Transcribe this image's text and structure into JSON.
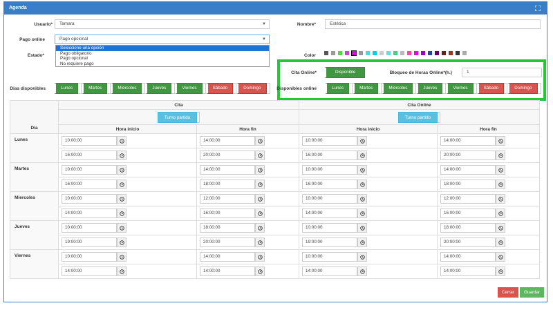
{
  "panel": {
    "title": "Agenda"
  },
  "form": {
    "usuario": {
      "label": "Usuario*",
      "value": "Tamara"
    },
    "nombre": {
      "label": "Nombre*",
      "value": "Estética"
    },
    "pago_online": {
      "label": "Pago online",
      "value": "Pago opcional",
      "options": [
        "Seleccione una opción",
        "Pago obligatorio",
        "Pago opcional",
        "No requiere pago"
      ]
    },
    "estado": {
      "label": "Estado*"
    },
    "color": {
      "label": "Color",
      "swatches": [
        "#555555",
        "#999999",
        "#44dd44",
        "#cc44cc",
        "#dd00dd",
        "#999999",
        "#44dddd",
        "#00ccee",
        "#cccccc",
        "#66dddd",
        "#44cc88",
        "#bbbbbb",
        "#ff44aa",
        "#ee00ee",
        "#9900cc",
        "#2244aa",
        "#660066",
        "#662222",
        "#993322",
        "#333333",
        "#aaaaaa"
      ]
    },
    "cita_online": {
      "label": "Cita Online*",
      "button": "Disponible"
    },
    "bloqueo": {
      "label": "Bloqueo de Horas Online*(h.)",
      "value": "1"
    },
    "dias_disponibles": {
      "label": "Días disponibles"
    },
    "disponibles_online": {
      "label": "Disponibles online"
    }
  },
  "days_buttons": [
    {
      "label": "Lunes",
      "state": "on"
    },
    {
      "label": "Martes",
      "state": "on"
    },
    {
      "label": "Miércoles",
      "state": "on"
    },
    {
      "label": "Jueves",
      "state": "on"
    },
    {
      "label": "Viernes",
      "state": "on"
    },
    {
      "label": "Sábado",
      "state": "off"
    },
    {
      "label": "Domingo",
      "state": "off"
    }
  ],
  "table": {
    "section_cita": "Cita",
    "section_online": "Cita Online",
    "turno_label": "Turno partido",
    "dia_header": "Día",
    "hora_inicio": "Hora inicio",
    "hora_fin": "Hora fin",
    "rows": [
      {
        "day": "Lunes",
        "shifts": [
          [
            "10:00:00",
            "14:00:00",
            "10:00:00",
            "14:00:00"
          ],
          [
            "16:00:00",
            "20:00:00",
            "16:00:00",
            "20:00:00"
          ]
        ]
      },
      {
        "day": "Martes",
        "shifts": [
          [
            "10:00:00",
            "14:00:00",
            "10:00:00",
            "14:00:00"
          ],
          [
            "16:00:00",
            "18:00:00",
            "16:00:00",
            "18:00:00"
          ]
        ]
      },
      {
        "day": "Miercoles",
        "shifts": [
          [
            "10:00:00",
            "12:00:00",
            "10:00:00",
            "12:00:00"
          ],
          [
            "14:00:00",
            "16:00:00",
            "14:00:00",
            "16:00:00"
          ]
        ]
      },
      {
        "day": "Jueves",
        "shifts": [
          [
            "10:00:00",
            "18:00:00",
            "10:00:00",
            "18:00:00"
          ],
          [
            "19:00:00",
            "20:00:00",
            "19:00:00",
            "20:00:00"
          ]
        ]
      },
      {
        "day": "Viernes",
        "shifts": [
          [
            "10:00:00",
            "14:00:00",
            "10:00:00",
            "14:00:00"
          ],
          [
            "14:00:00",
            "14:00:00",
            "14:00:00",
            "14:00:00"
          ]
        ]
      }
    ]
  },
  "footer": {
    "cerrar": "Cerrar",
    "guardar": "Guardar"
  },
  "colors": {
    "header": "#3b7ec8",
    "green": "#419641",
    "red": "#d9534f",
    "info": "#5bc0de",
    "highlight": "#22c933"
  }
}
